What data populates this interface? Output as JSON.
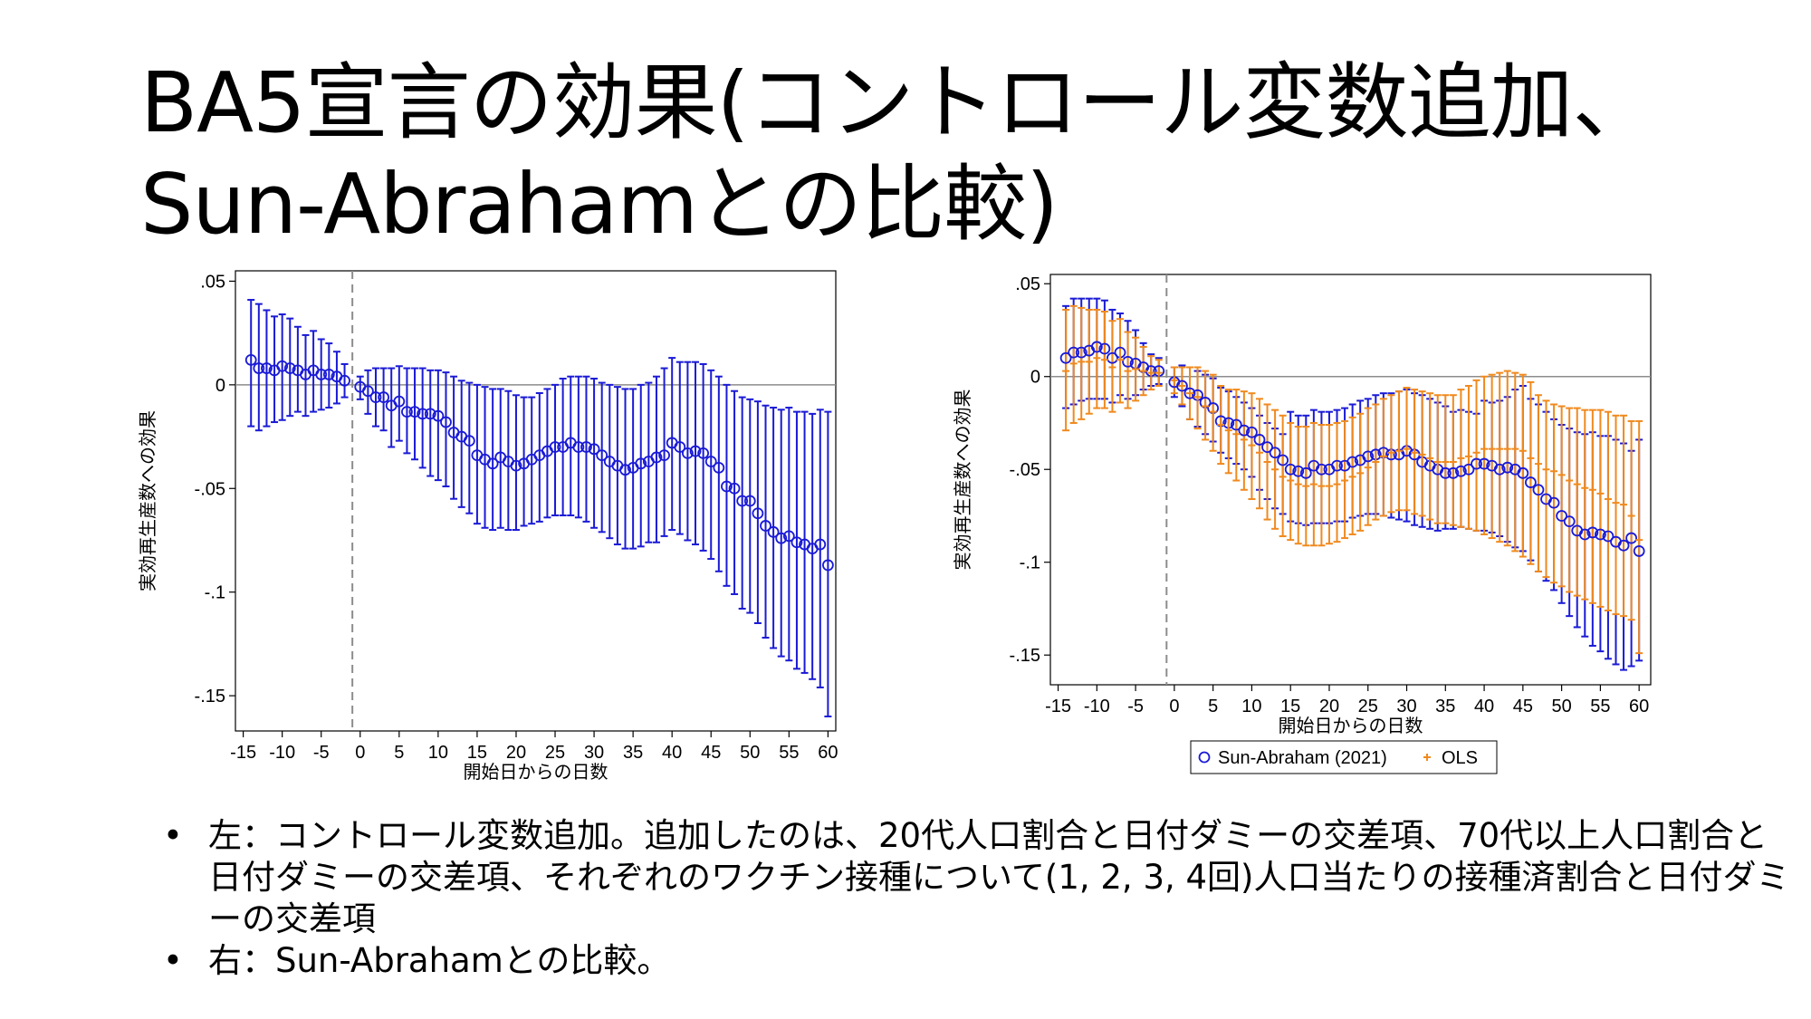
{
  "slide": {
    "title_line1": "BA5宣言の効果(コントロール変数追加、",
    "title_line2": "Sun-Abrahamとの比較)",
    "bullets": [
      {
        "marker": "•",
        "text": "左：コントロール変数追加。追加したのは、20代人口割合と日付ダミーの交差項、70代以上人口割合と日付ダミーの交差項、それぞれのワクチン接種について(1, 2, 3, 4回)人口当たりの接種済割合と日付ダミーの交差項"
      },
      {
        "marker": "•",
        "text": "右：Sun-Abrahamとの比較。"
      }
    ]
  },
  "colors": {
    "blue": "#1a1ad6",
    "orange": "#f08a1e",
    "ref_line": "#8c8c8c"
  },
  "chart_data": [
    {
      "type": "scatter",
      "xlabel": "開始日からの日数",
      "ylabel": "実効再生産数への効果",
      "xlim": [
        -16,
        61
      ],
      "ylim": [
        -0.167,
        0.055
      ],
      "x_ticks": [
        -15,
        -10,
        -5,
        0,
        5,
        10,
        15,
        20,
        25,
        30,
        35,
        40,
        45,
        50,
        55,
        60
      ],
      "x_tick_labels": [
        "-15",
        "-10",
        "-5",
        "0",
        "5",
        "10",
        "15",
        "20",
        "25",
        "30",
        "35",
        "40",
        "45",
        "50",
        "55",
        "60"
      ],
      "y_ticks": [
        0.05,
        0,
        -0.05,
        -0.1,
        -0.15
      ],
      "y_tick_labels": [
        ".05",
        "0",
        "-.05",
        "-.1",
        "-.15"
      ],
      "ref_lines": {
        "x": -1,
        "y": 0
      },
      "series": [
        {
          "marker": "circle",
          "color": "blue",
          "x": [
            -14,
            -13,
            -12,
            -11,
            -10,
            -9,
            -8,
            -7,
            -6,
            -5,
            -4,
            -3,
            -2,
            0,
            1,
            2,
            3,
            4,
            5,
            6,
            7,
            8,
            9,
            10,
            11,
            12,
            13,
            14,
            15,
            16,
            17,
            18,
            19,
            20,
            21,
            22,
            23,
            24,
            25,
            26,
            27,
            28,
            29,
            30,
            31,
            32,
            33,
            34,
            35,
            36,
            37,
            38,
            39,
            40,
            41,
            42,
            43,
            44,
            45,
            46,
            47,
            48,
            49,
            50,
            51,
            52,
            53,
            54,
            55,
            56,
            57,
            58,
            59,
            60
          ],
          "y": [
            0.012,
            0.008,
            0.008,
            0.007,
            0.009,
            0.008,
            0.007,
            0.005,
            0.007,
            0.005,
            0.005,
            0.004,
            0.002,
            -0.001,
            -0.003,
            -0.006,
            -0.006,
            -0.01,
            -0.008,
            -0.013,
            -0.013,
            -0.014,
            -0.014,
            -0.015,
            -0.018,
            -0.023,
            -0.025,
            -0.027,
            -0.034,
            -0.036,
            -0.038,
            -0.035,
            -0.037,
            -0.039,
            -0.038,
            -0.036,
            -0.034,
            -0.032,
            -0.03,
            -0.03,
            -0.028,
            -0.03,
            -0.03,
            -0.031,
            -0.034,
            -0.037,
            -0.039,
            -0.041,
            -0.04,
            -0.038,
            -0.037,
            -0.035,
            -0.034,
            -0.028,
            -0.03,
            -0.033,
            -0.032,
            -0.033,
            -0.037,
            -0.04,
            -0.049,
            -0.05,
            -0.056,
            -0.056,
            -0.062,
            -0.068,
            -0.071,
            -0.074,
            -0.073,
            -0.076,
            -0.077,
            -0.079,
            -0.077,
            -0.087
          ],
          "lower": [
            -0.02,
            -0.022,
            -0.02,
            -0.018,
            -0.017,
            -0.015,
            -0.013,
            -0.015,
            -0.013,
            -0.012,
            -0.011,
            -0.009,
            -0.006,
            -0.007,
            -0.014,
            -0.02,
            -0.022,
            -0.03,
            -0.027,
            -0.033,
            -0.036,
            -0.04,
            -0.044,
            -0.046,
            -0.049,
            -0.055,
            -0.059,
            -0.062,
            -0.067,
            -0.069,
            -0.07,
            -0.069,
            -0.07,
            -0.07,
            -0.068,
            -0.067,
            -0.066,
            -0.064,
            -0.063,
            -0.063,
            -0.063,
            -0.064,
            -0.066,
            -0.069,
            -0.071,
            -0.074,
            -0.077,
            -0.079,
            -0.079,
            -0.078,
            -0.076,
            -0.076,
            -0.073,
            -0.07,
            -0.072,
            -0.075,
            -0.077,
            -0.08,
            -0.084,
            -0.09,
            -0.097,
            -0.101,
            -0.108,
            -0.11,
            -0.115,
            -0.122,
            -0.127,
            -0.131,
            -0.133,
            -0.137,
            -0.139,
            -0.142,
            -0.146,
            -0.16
          ],
          "upper": [
            0.041,
            0.039,
            0.036,
            0.033,
            0.034,
            0.032,
            0.028,
            0.024,
            0.026,
            0.022,
            0.02,
            0.016,
            0.01,
            0.004,
            0.007,
            0.008,
            0.008,
            0.008,
            0.009,
            0.008,
            0.008,
            0.008,
            0.007,
            0.007,
            0.006,
            0.004,
            0.002,
            0.001,
            0.0,
            -0.001,
            -0.002,
            -0.002,
            -0.003,
            -0.005,
            -0.006,
            -0.006,
            -0.004,
            -0.002,
            0.0,
            0.003,
            0.004,
            0.004,
            0.004,
            0.003,
            0.001,
            0.0,
            -0.001,
            -0.002,
            -0.002,
            0.0,
            0.001,
            0.004,
            0.008,
            0.013,
            0.011,
            0.011,
            0.011,
            0.01,
            0.007,
            0.004,
            0.0,
            -0.003,
            -0.006,
            -0.007,
            -0.008,
            -0.01,
            -0.011,
            -0.012,
            -0.011,
            -0.013,
            -0.013,
            -0.014,
            -0.012,
            -0.013
          ]
        }
      ]
    },
    {
      "type": "scatter",
      "xlabel": "開始日からの日数",
      "ylabel": "実効再生産数への効果",
      "xlim": [
        -16,
        61.5
      ],
      "ylim": [
        -0.166,
        0.055
      ],
      "x_ticks": [
        -15,
        -10,
        -5,
        0,
        5,
        10,
        15,
        20,
        25,
        30,
        35,
        40,
        45,
        50,
        55,
        60
      ],
      "x_tick_labels": [
        "-15",
        "-10",
        "-5",
        "0",
        "5",
        "10",
        "15",
        "20",
        "25",
        "30",
        "35",
        "40",
        "45",
        "50",
        "55",
        "60"
      ],
      "y_ticks": [
        0.05,
        0,
        -0.05,
        -0.1,
        -0.15
      ],
      "y_tick_labels": [
        ".05",
        "0",
        "-.05",
        "-.1",
        "-.15"
      ],
      "ref_lines": {
        "x": -1,
        "y": 0
      },
      "legend": {
        "position": "bottom",
        "entries": [
          "Sun-Abraham (2021)",
          "OLS"
        ]
      },
      "series": [
        {
          "name": "Sun-Abraham (2021)",
          "marker": "circle",
          "color": "blue",
          "x": [
            -14,
            -13,
            -12,
            -11,
            -10,
            -9,
            -8,
            -7,
            -6,
            -5,
            -4,
            -3,
            -2,
            0,
            1,
            2,
            3,
            4,
            5,
            6,
            7,
            8,
            9,
            10,
            11,
            12,
            13,
            14,
            15,
            16,
            17,
            18,
            19,
            20,
            21,
            22,
            23,
            24,
            25,
            26,
            27,
            28,
            29,
            30,
            31,
            32,
            33,
            34,
            35,
            36,
            37,
            38,
            39,
            40,
            41,
            42,
            43,
            44,
            45,
            46,
            47,
            48,
            49,
            50,
            51,
            52,
            53,
            54,
            55,
            56,
            57,
            58,
            59,
            60
          ],
          "y": [
            0.01,
            0.013,
            0.013,
            0.014,
            0.016,
            0.015,
            0.01,
            0.013,
            0.008,
            0.007,
            0.005,
            0.003,
            0.003,
            -0.003,
            -0.005,
            -0.009,
            -0.01,
            -0.014,
            -0.017,
            -0.024,
            -0.025,
            -0.026,
            -0.029,
            -0.03,
            -0.034,
            -0.038,
            -0.041,
            -0.045,
            -0.05,
            -0.051,
            -0.052,
            -0.048,
            -0.05,
            -0.05,
            -0.048,
            -0.048,
            -0.046,
            -0.045,
            -0.043,
            -0.042,
            -0.041,
            -0.042,
            -0.042,
            -0.04,
            -0.042,
            -0.046,
            -0.048,
            -0.05,
            -0.052,
            -0.052,
            -0.051,
            -0.05,
            -0.047,
            -0.047,
            -0.048,
            -0.05,
            -0.049,
            -0.05,
            -0.052,
            -0.057,
            -0.061,
            -0.066,
            -0.068,
            -0.075,
            -0.078,
            -0.083,
            -0.085,
            -0.084,
            -0.085,
            -0.086,
            -0.089,
            -0.091,
            -0.087,
            -0.094
          ],
          "lower": [
            -0.017,
            -0.015,
            -0.013,
            -0.012,
            -0.012,
            -0.012,
            -0.014,
            -0.01,
            -0.012,
            -0.01,
            -0.007,
            -0.005,
            -0.004,
            -0.011,
            -0.016,
            -0.023,
            -0.027,
            -0.031,
            -0.035,
            -0.041,
            -0.044,
            -0.047,
            -0.05,
            -0.054,
            -0.061,
            -0.066,
            -0.071,
            -0.074,
            -0.078,
            -0.079,
            -0.08,
            -0.079,
            -0.079,
            -0.079,
            -0.078,
            -0.078,
            -0.076,
            -0.075,
            -0.074,
            -0.074,
            -0.075,
            -0.076,
            -0.077,
            -0.078,
            -0.08,
            -0.081,
            -0.082,
            -0.083,
            -0.082,
            -0.082,
            -0.081,
            -0.082,
            -0.083,
            -0.083,
            -0.084,
            -0.086,
            -0.089,
            -0.092,
            -0.094,
            -0.099,
            -0.105,
            -0.11,
            -0.115,
            -0.122,
            -0.129,
            -0.135,
            -0.14,
            -0.145,
            -0.148,
            -0.152,
            -0.155,
            -0.158,
            -0.156,
            -0.153
          ],
          "upper": [
            0.038,
            0.042,
            0.042,
            0.042,
            0.042,
            0.041,
            0.036,
            0.034,
            0.03,
            0.025,
            0.018,
            0.012,
            0.01,
            0.005,
            0.006,
            0.005,
            0.003,
            0.001,
            -0.001,
            -0.006,
            -0.008,
            -0.011,
            -0.014,
            -0.017,
            -0.021,
            -0.025,
            -0.028,
            -0.031,
            -0.019,
            -0.021,
            -0.021,
            -0.018,
            -0.019,
            -0.019,
            -0.018,
            -0.017,
            -0.015,
            -0.013,
            -0.012,
            -0.01,
            -0.009,
            -0.009,
            -0.008,
            -0.007,
            -0.009,
            -0.01,
            -0.012,
            -0.014,
            -0.016,
            -0.019,
            -0.018,
            -0.019,
            -0.02,
            -0.013,
            -0.014,
            -0.013,
            -0.011,
            -0.007,
            -0.005,
            -0.012,
            -0.015,
            -0.019,
            -0.023,
            -0.026,
            -0.028,
            -0.03,
            -0.031,
            -0.03,
            -0.032,
            -0.032,
            -0.034,
            -0.036,
            -0.04,
            -0.034
          ]
        },
        {
          "name": "OLS",
          "marker": "plus",
          "color": "orange",
          "x": [
            -14,
            -13,
            -12,
            -11,
            -10,
            -9,
            -8,
            -7,
            -6,
            -5,
            -4,
            -3,
            -2,
            0,
            1,
            2,
            3,
            4,
            5,
            6,
            7,
            8,
            9,
            10,
            11,
            12,
            13,
            14,
            15,
            16,
            17,
            18,
            19,
            20,
            21,
            22,
            23,
            24,
            25,
            26,
            27,
            28,
            29,
            30,
            31,
            32,
            33,
            34,
            35,
            36,
            37,
            38,
            39,
            40,
            41,
            42,
            43,
            44,
            45,
            46,
            47,
            48,
            49,
            50,
            51,
            52,
            53,
            54,
            55,
            56,
            57,
            58,
            59,
            60
          ],
          "y": [
            0.003,
            0.007,
            0.008,
            0.008,
            0.01,
            0.009,
            0.005,
            0.009,
            0.003,
            0.004,
            0.003,
            0.002,
            0.002,
            -0.002,
            -0.005,
            -0.009,
            -0.011,
            -0.016,
            -0.019,
            -0.026,
            -0.029,
            -0.031,
            -0.034,
            -0.037,
            -0.041,
            -0.046,
            -0.05,
            -0.054,
            -0.056,
            -0.058,
            -0.059,
            -0.058,
            -0.059,
            -0.059,
            -0.058,
            -0.056,
            -0.054,
            -0.052,
            -0.049,
            -0.046,
            -0.043,
            -0.041,
            -0.04,
            -0.039,
            -0.041,
            -0.042,
            -0.044,
            -0.046,
            -0.046,
            -0.046,
            -0.044,
            -0.043,
            -0.041,
            -0.039,
            -0.039,
            -0.039,
            -0.039,
            -0.039,
            -0.04,
            -0.044,
            -0.047,
            -0.05,
            -0.051,
            -0.053,
            -0.056,
            -0.058,
            -0.06,
            -0.061,
            -0.063,
            -0.066,
            -0.068,
            -0.069,
            -0.075,
            -0.088
          ],
          "lower": [
            -0.029,
            -0.025,
            -0.023,
            -0.02,
            -0.017,
            -0.017,
            -0.019,
            -0.014,
            -0.017,
            -0.013,
            -0.01,
            -0.007,
            -0.005,
            -0.009,
            -0.015,
            -0.023,
            -0.028,
            -0.034,
            -0.04,
            -0.047,
            -0.052,
            -0.056,
            -0.061,
            -0.066,
            -0.071,
            -0.077,
            -0.082,
            -0.086,
            -0.088,
            -0.09,
            -0.091,
            -0.091,
            -0.091,
            -0.09,
            -0.089,
            -0.087,
            -0.085,
            -0.083,
            -0.08,
            -0.077,
            -0.075,
            -0.073,
            -0.072,
            -0.072,
            -0.074,
            -0.075,
            -0.077,
            -0.079,
            -0.079,
            -0.08,
            -0.081,
            -0.082,
            -0.083,
            -0.085,
            -0.087,
            -0.089,
            -0.091,
            -0.094,
            -0.097,
            -0.101,
            -0.105,
            -0.108,
            -0.111,
            -0.113,
            -0.116,
            -0.118,
            -0.12,
            -0.122,
            -0.124,
            -0.126,
            -0.128,
            -0.129,
            -0.131,
            -0.149
          ],
          "upper": [
            0.036,
            0.038,
            0.037,
            0.036,
            0.036,
            0.035,
            0.03,
            0.031,
            0.024,
            0.021,
            0.016,
            0.011,
            0.009,
            0.005,
            0.005,
            0.005,
            0.005,
            0.003,
            0.001,
            -0.005,
            -0.007,
            -0.007,
            -0.008,
            -0.009,
            -0.012,
            -0.015,
            -0.018,
            -0.021,
            -0.025,
            -0.027,
            -0.027,
            -0.025,
            -0.026,
            -0.026,
            -0.025,
            -0.024,
            -0.022,
            -0.02,
            -0.017,
            -0.015,
            -0.012,
            -0.01,
            -0.008,
            -0.006,
            -0.007,
            -0.008,
            -0.009,
            -0.01,
            -0.01,
            -0.01,
            -0.007,
            -0.005,
            -0.002,
            0.0,
            0.001,
            0.002,
            0.003,
            0.002,
            0.001,
            -0.003,
            -0.01,
            -0.013,
            -0.015,
            -0.016,
            -0.017,
            -0.017,
            -0.018,
            -0.018,
            -0.018,
            -0.019,
            -0.021,
            -0.021,
            -0.024,
            -0.024
          ]
        }
      ]
    }
  ]
}
